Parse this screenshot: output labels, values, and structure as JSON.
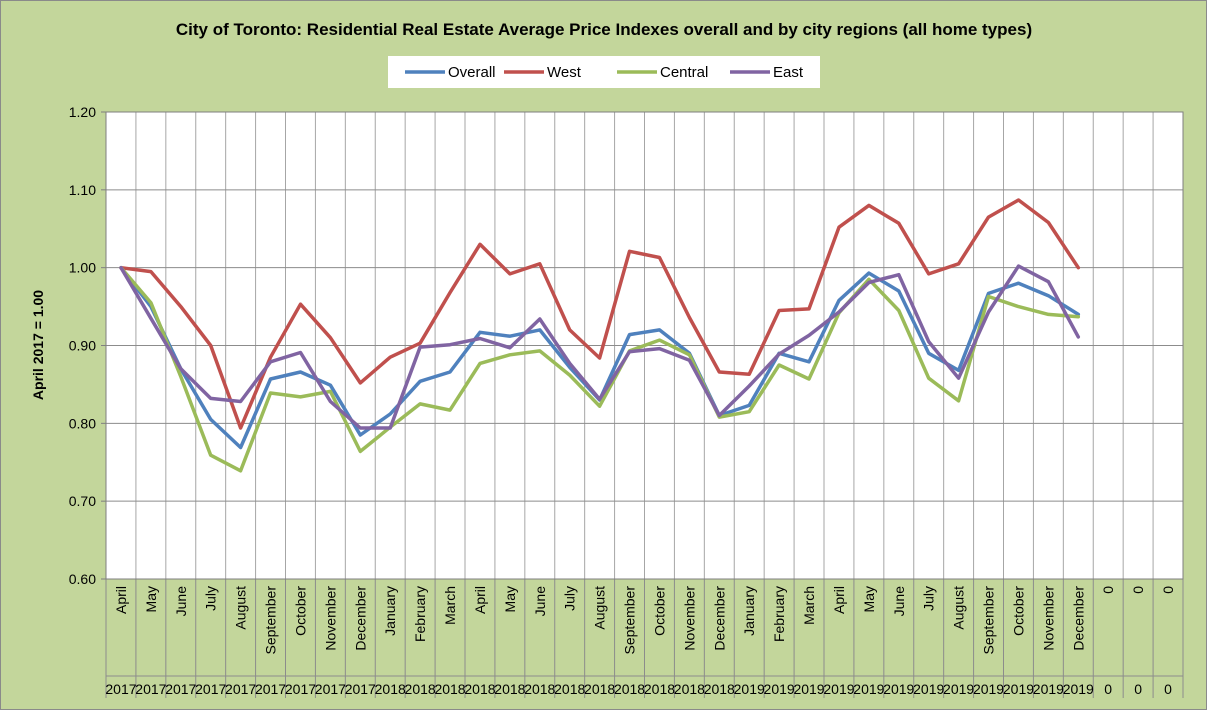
{
  "chart_data": {
    "type": "line",
    "title": "City of Toronto: Residential Real Estate Average Price Indexes overall and by city regions (all home types)",
    "ylabel": "April 2017 = 1.00",
    "xlabel": "",
    "ylim": [
      0.6,
      1.2
    ],
    "yticks": [
      "0.60",
      "0.70",
      "0.80",
      "0.90",
      "1.00",
      "1.10",
      "1.20"
    ],
    "grid": true,
    "legend_position": "top",
    "months": [
      "April",
      "May",
      "June",
      "July",
      "August",
      "September",
      "October",
      "November",
      "December",
      "January",
      "February",
      "March",
      "April",
      "May",
      "June",
      "July",
      "August",
      "September",
      "October",
      "November",
      "December",
      "January",
      "February",
      "March",
      "April",
      "May",
      "June",
      "July",
      "August",
      "September",
      "October",
      "November",
      "December",
      "0",
      "0",
      "0"
    ],
    "years": [
      "2017",
      "2017",
      "2017",
      "2017",
      "2017",
      "2017",
      "2017",
      "2017",
      "2017",
      "2018",
      "2018",
      "2018",
      "2018",
      "2018",
      "2018",
      "2018",
      "2018",
      "2018",
      "2018",
      "2018",
      "2018",
      "2019",
      "2019",
      "2019",
      "2019",
      "2019",
      "2019",
      "2019",
      "2019",
      "2019",
      "2019",
      "2019",
      "2019",
      "0",
      "0",
      "0"
    ],
    "series": [
      {
        "name": "Overall",
        "color": "#4f81bd",
        "values": [
          1.0,
          0.95,
          0.87,
          0.805,
          0.769,
          0.857,
          0.866,
          0.849,
          0.785,
          0.812,
          0.854,
          0.866,
          0.917,
          0.912,
          0.92,
          0.872,
          0.83,
          0.914,
          0.92,
          0.89,
          0.81,
          0.823,
          0.89,
          0.879,
          0.958,
          0.993,
          0.97,
          0.89,
          0.868,
          0.967,
          0.98,
          0.964,
          0.94
        ]
      },
      {
        "name": "West",
        "color": "#c0504d",
        "values": [
          1.0,
          0.995,
          0.95,
          0.9,
          0.794,
          0.885,
          0.953,
          0.91,
          0.852,
          0.885,
          0.903,
          0.968,
          1.03,
          0.992,
          1.005,
          0.92,
          0.884,
          1.021,
          1.013,
          0.936,
          0.866,
          0.863,
          0.945,
          0.947,
          1.052,
          1.08,
          1.057,
          0.992,
          1.005,
          1.065,
          1.087,
          1.058,
          1.0
        ]
      },
      {
        "name": "Central",
        "color": "#9bbb59",
        "values": [
          1.0,
          0.955,
          0.86,
          0.759,
          0.739,
          0.839,
          0.834,
          0.841,
          0.764,
          0.795,
          0.825,
          0.817,
          0.877,
          0.888,
          0.893,
          0.862,
          0.822,
          0.893,
          0.907,
          0.888,
          0.808,
          0.815,
          0.875,
          0.857,
          0.942,
          0.985,
          0.945,
          0.858,
          0.829,
          0.963,
          0.95,
          0.94,
          0.937
        ]
      },
      {
        "name": "East",
        "color": "#8064a2",
        "values": [
          1.0,
          0.935,
          0.87,
          0.832,
          0.828,
          0.879,
          0.891,
          0.828,
          0.794,
          0.794,
          0.898,
          0.901,
          0.909,
          0.897,
          0.934,
          0.877,
          0.831,
          0.892,
          0.896,
          0.881,
          0.81,
          0.848,
          0.889,
          0.913,
          0.943,
          0.981,
          0.991,
          0.905,
          0.858,
          0.943,
          1.002,
          0.982,
          0.911
        ]
      }
    ]
  }
}
